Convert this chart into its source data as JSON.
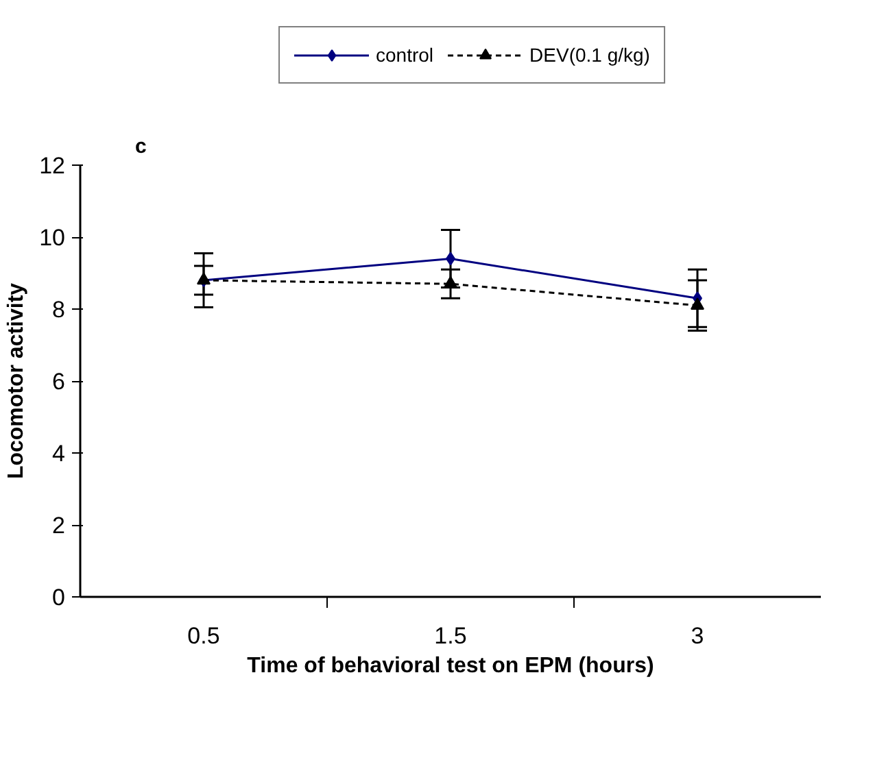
{
  "chart_data": {
    "type": "line",
    "title": "c",
    "xlabel": "Time of behavioral test on EPM (hours)",
    "ylabel": "Locomotor activity",
    "categories": [
      "0.5",
      "1.5",
      "3"
    ],
    "series": [
      {
        "name": "control",
        "color": "#000080",
        "values": [
          8.8,
          9.4,
          8.3
        ],
        "errors": [
          0.75,
          0.8,
          0.8
        ],
        "marker": "diamond",
        "line_style": "solid"
      },
      {
        "name": "DEV(0.1 g/kg)",
        "color": "#000000",
        "values": [
          8.8,
          8.7,
          8.1
        ],
        "errors": [
          0.4,
          0.4,
          0.7
        ],
        "marker": "triangle",
        "line_style": "dashed"
      }
    ],
    "ylim": [
      0,
      12
    ],
    "yticks": [
      0,
      2,
      4,
      6,
      8,
      10,
      12
    ],
    "grid": false,
    "legend": "top"
  }
}
